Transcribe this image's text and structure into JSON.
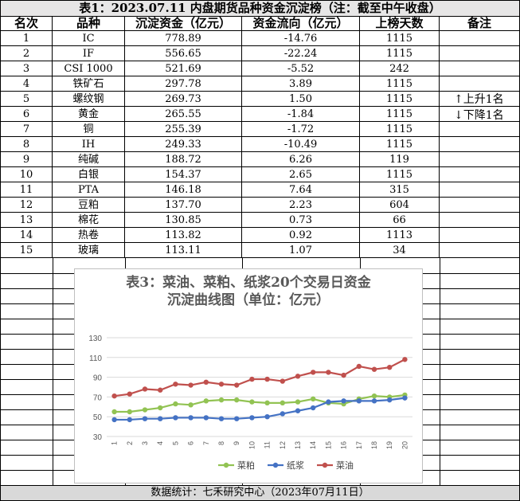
{
  "title": "表1：2023.07.11 内盘期货品种资金沉淀榜（注：截至中午收盘）",
  "headers": [
    "名次",
    "品种",
    "沉淀资金（亿元）",
    "资金流向（亿元）",
    "上榜天数",
    "备注"
  ],
  "rows": [
    {
      "rank": "1",
      "name": "IC",
      "fund": "778.89",
      "flow": "-14.76",
      "days": "1115",
      "note": ""
    },
    {
      "rank": "2",
      "name": "IF",
      "fund": "556.65",
      "flow": "-22.24",
      "days": "1115",
      "note": ""
    },
    {
      "rank": "3",
      "name": "CSI 1000",
      "fund": "521.69",
      "flow": "-5.52",
      "days": "242",
      "note": ""
    },
    {
      "rank": "4",
      "name": "铁矿石",
      "fund": "297.78",
      "flow": "3.89",
      "days": "1115",
      "note": ""
    },
    {
      "rank": "5",
      "name": "螺纹钢",
      "fund": "269.73",
      "flow": "1.50",
      "days": "1115",
      "note": "上升1名"
    },
    {
      "rank": "6",
      "name": "黄金",
      "fund": "265.55",
      "flow": "-1.84",
      "days": "1115",
      "note": "下降1名"
    },
    {
      "rank": "7",
      "name": "铜",
      "fund": "255.39",
      "flow": "-1.72",
      "days": "1115",
      "note": ""
    },
    {
      "rank": "8",
      "name": "IH",
      "fund": "249.33",
      "flow": "-10.49",
      "days": "1115",
      "note": ""
    },
    {
      "rank": "9",
      "name": "纯碱",
      "fund": "188.72",
      "flow": "6.26",
      "days": "119",
      "note": ""
    },
    {
      "rank": "10",
      "name": "白银",
      "fund": "154.37",
      "flow": "2.65",
      "days": "1115",
      "note": ""
    },
    {
      "rank": "11",
      "name": "PTA",
      "fund": "146.18",
      "flow": "7.64",
      "days": "315",
      "note": ""
    },
    {
      "rank": "12",
      "name": "豆粕",
      "fund": "137.70",
      "flow": "2.23",
      "days": "604",
      "note": ""
    },
    {
      "rank": "13",
      "name": "棉花",
      "fund": "130.85",
      "flow": "0.73",
      "days": "66",
      "note": ""
    },
    {
      "rank": "14",
      "name": "热卷",
      "fund": "113.82",
      "flow": "0.92",
      "days": "1113",
      "note": ""
    },
    {
      "rank": "15",
      "name": "玻璃",
      "fund": "113.11",
      "flow": "1.07",
      "days": "34",
      "note": ""
    }
  ],
  "notes": {
    "up": "上升1名",
    "down": "下降1名",
    "up_arrow": "↑",
    "down_arrow": "↓"
  },
  "footer": "数据统计：七禾研究中心（2023年07月11日）",
  "chart_data": {
    "type": "line",
    "title": "表3：菜油、菜粕、纸浆20个交易日资金沉淀曲线图（单位：亿元）",
    "title_line1": "表3：菜油、菜粕、纸浆20个交易日资金",
    "title_line2": "沉淀曲线图（单位：亿元）",
    "x": [
      "1",
      "2",
      "3",
      "4",
      "5",
      "6",
      "7",
      "8",
      "9",
      "10",
      "11",
      "12",
      "13",
      "14",
      "15",
      "16",
      "17",
      "18",
      "19",
      "20"
    ],
    "ylim": [
      30,
      130
    ],
    "yticks": [
      30,
      50,
      70,
      90,
      110,
      130
    ],
    "grid": true,
    "legend_position": "bottom",
    "series": [
      {
        "name": "菜粕",
        "color": "#92c353",
        "values": [
          55,
          55,
          57,
          59,
          63,
          62,
          66,
          67,
          67,
          65,
          64,
          64,
          65,
          68,
          64,
          63,
          68,
          71,
          70,
          72
        ]
      },
      {
        "name": "纸浆",
        "color": "#4472c4",
        "values": [
          47,
          47,
          48,
          48,
          49,
          49,
          49,
          48,
          48,
          49,
          50,
          53,
          56,
          59,
          65,
          66,
          66,
          66,
          67,
          69
        ]
      },
      {
        "name": "菜油",
        "color": "#c0504d",
        "values": [
          71,
          73,
          78,
          77,
          83,
          82,
          85,
          83,
          82,
          88,
          88,
          86,
          91,
          95,
          95,
          92,
          101,
          98,
          100,
          108
        ]
      }
    ]
  }
}
